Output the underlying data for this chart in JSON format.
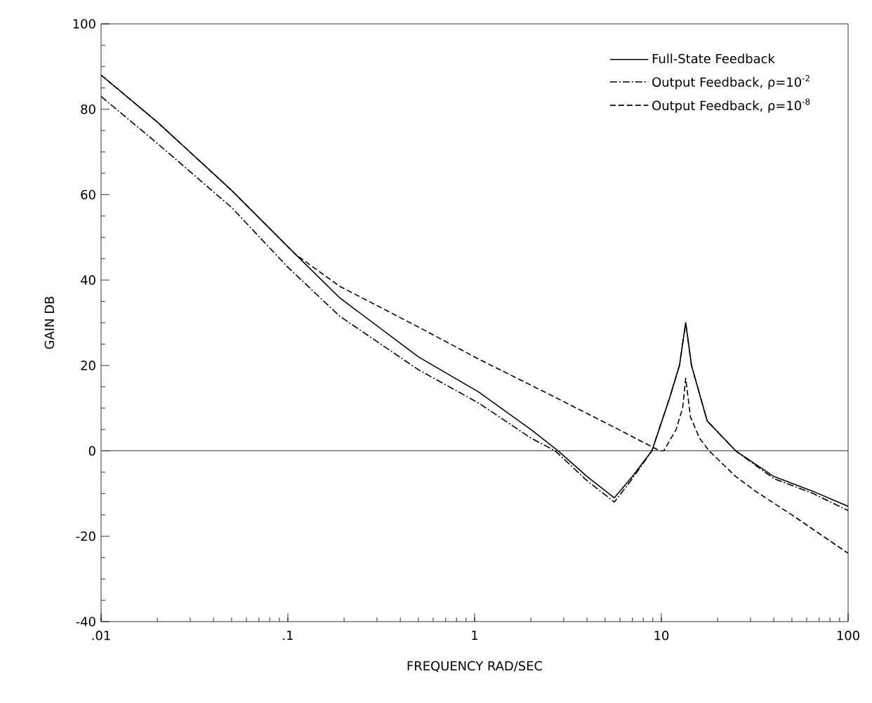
{
  "chart_data": {
    "type": "line",
    "xlabel": "FREQUENCY RAD/SEC",
    "ylabel": "GAIN DB",
    "log": "x",
    "xlim": [
      0.01,
      100
    ],
    "xticks": [
      {
        "value": 0.01,
        "label": ".01"
      },
      {
        "value": 0.1,
        "label": ".1"
      },
      1,
      10,
      100
    ],
    "ylim": [
      -40,
      100
    ],
    "yticks": [
      -40,
      -20,
      0,
      20,
      40,
      60,
      80,
      100
    ],
    "grid": false,
    "legend": "top right",
    "marker": "none",
    "ref_lines": [
      {
        "axis": "y",
        "value": 0,
        "color": "#000000"
      }
    ],
    "series": [
      {
        "name": "Full-State Feedback",
        "color": "#000000",
        "line_style": "solid",
        "x": [
          0.01,
          0.02,
          0.05,
          0.11,
          0.19,
          0.5,
          1.05,
          2,
          2.8,
          4,
          5.6,
          7,
          8.9,
          11,
          12.5,
          13.5,
          14.5,
          17.6,
          25,
          40,
          65,
          100
        ],
        "values": [
          88,
          77,
          61,
          46,
          35.8,
          22,
          13.8,
          5,
          0,
          -6,
          -11,
          -6,
          0,
          12,
          20,
          30,
          20,
          7,
          0,
          -6,
          -9.5,
          -13
        ]
      },
      {
        "name": "Output Feedback, ρ=10$^{-2}$",
        "color": "#000000",
        "line_style": "dashdot",
        "x": [
          0.01,
          0.02,
          0.05,
          0.1,
          0.19,
          0.5,
          1.05,
          2,
          2.7,
          4,
          5.6,
          7,
          8.9,
          11,
          12.5,
          13.5,
          14.5,
          17.6,
          25,
          40,
          65,
          100
        ],
        "values": [
          83,
          72,
          57,
          43,
          31.5,
          19,
          11.2,
          3,
          0,
          -7,
          -12,
          -6.5,
          0,
          12,
          20,
          30,
          20,
          7,
          0,
          -6.5,
          -10,
          -14
        ]
      },
      {
        "name": "Output Feedback, ρ=10$^{-8}$",
        "color": "#000000",
        "line_style": "dashed",
        "x": [
          0.01,
          0.02,
          0.05,
          0.11,
          0.19,
          0.5,
          1.05,
          2.6,
          5.9,
          9.8,
          10.3,
          12,
          13,
          13.5,
          14.3,
          16,
          18,
          25,
          32,
          50,
          100
        ],
        "values": [
          88,
          77,
          61,
          46,
          38.5,
          29,
          21.5,
          12.9,
          5,
          0,
          0,
          5,
          10,
          17,
          8,
          3,
          0,
          -6,
          -9.5,
          -15,
          -24
        ]
      }
    ]
  }
}
